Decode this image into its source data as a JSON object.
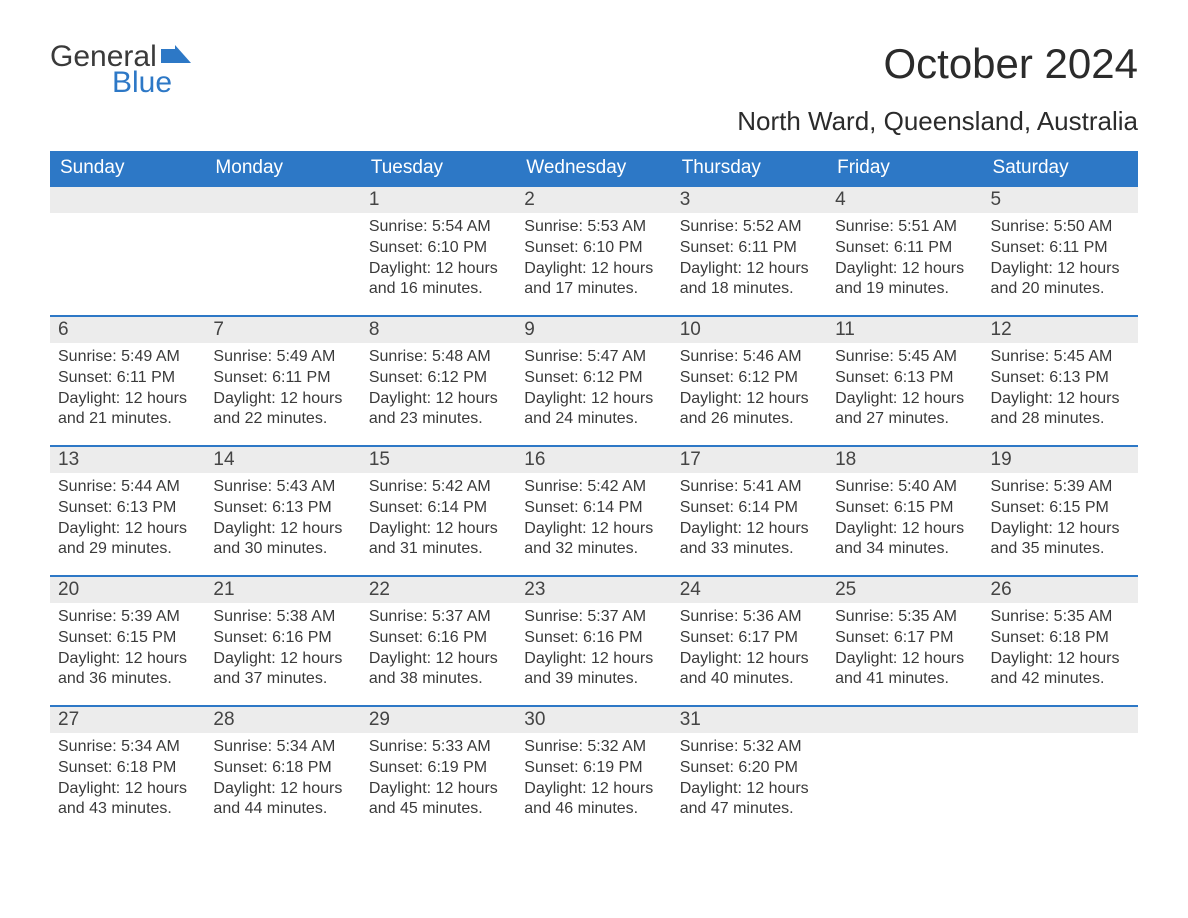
{
  "logo": {
    "text1": "General",
    "text2": "Blue",
    "accent_color": "#2d78c6"
  },
  "header": {
    "month_title": "October 2024",
    "location": "North Ward, Queensland, Australia"
  },
  "calendar": {
    "type": "table",
    "header_bg": "#2d78c6",
    "header_fg": "#ffffff",
    "daynum_bg": "#ececec",
    "row_border_color": "#2d78c6",
    "text_color": "#3a3a3a",
    "font_family": "Arial",
    "day_headers": [
      "Sunday",
      "Monday",
      "Tuesday",
      "Wednesday",
      "Thursday",
      "Friday",
      "Saturday"
    ],
    "weeks": [
      [
        null,
        null,
        {
          "n": "1",
          "sunrise": "Sunrise: 5:54 AM",
          "sunset": "Sunset: 6:10 PM",
          "dl1": "Daylight: 12 hours",
          "dl2": "and 16 minutes."
        },
        {
          "n": "2",
          "sunrise": "Sunrise: 5:53 AM",
          "sunset": "Sunset: 6:10 PM",
          "dl1": "Daylight: 12 hours",
          "dl2": "and 17 minutes."
        },
        {
          "n": "3",
          "sunrise": "Sunrise: 5:52 AM",
          "sunset": "Sunset: 6:11 PM",
          "dl1": "Daylight: 12 hours",
          "dl2": "and 18 minutes."
        },
        {
          "n": "4",
          "sunrise": "Sunrise: 5:51 AM",
          "sunset": "Sunset: 6:11 PM",
          "dl1": "Daylight: 12 hours",
          "dl2": "and 19 minutes."
        },
        {
          "n": "5",
          "sunrise": "Sunrise: 5:50 AM",
          "sunset": "Sunset: 6:11 PM",
          "dl1": "Daylight: 12 hours",
          "dl2": "and 20 minutes."
        }
      ],
      [
        {
          "n": "6",
          "sunrise": "Sunrise: 5:49 AM",
          "sunset": "Sunset: 6:11 PM",
          "dl1": "Daylight: 12 hours",
          "dl2": "and 21 minutes."
        },
        {
          "n": "7",
          "sunrise": "Sunrise: 5:49 AM",
          "sunset": "Sunset: 6:11 PM",
          "dl1": "Daylight: 12 hours",
          "dl2": "and 22 minutes."
        },
        {
          "n": "8",
          "sunrise": "Sunrise: 5:48 AM",
          "sunset": "Sunset: 6:12 PM",
          "dl1": "Daylight: 12 hours",
          "dl2": "and 23 minutes."
        },
        {
          "n": "9",
          "sunrise": "Sunrise: 5:47 AM",
          "sunset": "Sunset: 6:12 PM",
          "dl1": "Daylight: 12 hours",
          "dl2": "and 24 minutes."
        },
        {
          "n": "10",
          "sunrise": "Sunrise: 5:46 AM",
          "sunset": "Sunset: 6:12 PM",
          "dl1": "Daylight: 12 hours",
          "dl2": "and 26 minutes."
        },
        {
          "n": "11",
          "sunrise": "Sunrise: 5:45 AM",
          "sunset": "Sunset: 6:13 PM",
          "dl1": "Daylight: 12 hours",
          "dl2": "and 27 minutes."
        },
        {
          "n": "12",
          "sunrise": "Sunrise: 5:45 AM",
          "sunset": "Sunset: 6:13 PM",
          "dl1": "Daylight: 12 hours",
          "dl2": "and 28 minutes."
        }
      ],
      [
        {
          "n": "13",
          "sunrise": "Sunrise: 5:44 AM",
          "sunset": "Sunset: 6:13 PM",
          "dl1": "Daylight: 12 hours",
          "dl2": "and 29 minutes."
        },
        {
          "n": "14",
          "sunrise": "Sunrise: 5:43 AM",
          "sunset": "Sunset: 6:13 PM",
          "dl1": "Daylight: 12 hours",
          "dl2": "and 30 minutes."
        },
        {
          "n": "15",
          "sunrise": "Sunrise: 5:42 AM",
          "sunset": "Sunset: 6:14 PM",
          "dl1": "Daylight: 12 hours",
          "dl2": "and 31 minutes."
        },
        {
          "n": "16",
          "sunrise": "Sunrise: 5:42 AM",
          "sunset": "Sunset: 6:14 PM",
          "dl1": "Daylight: 12 hours",
          "dl2": "and 32 minutes."
        },
        {
          "n": "17",
          "sunrise": "Sunrise: 5:41 AM",
          "sunset": "Sunset: 6:14 PM",
          "dl1": "Daylight: 12 hours",
          "dl2": "and 33 minutes."
        },
        {
          "n": "18",
          "sunrise": "Sunrise: 5:40 AM",
          "sunset": "Sunset: 6:15 PM",
          "dl1": "Daylight: 12 hours",
          "dl2": "and 34 minutes."
        },
        {
          "n": "19",
          "sunrise": "Sunrise: 5:39 AM",
          "sunset": "Sunset: 6:15 PM",
          "dl1": "Daylight: 12 hours",
          "dl2": "and 35 minutes."
        }
      ],
      [
        {
          "n": "20",
          "sunrise": "Sunrise: 5:39 AM",
          "sunset": "Sunset: 6:15 PM",
          "dl1": "Daylight: 12 hours",
          "dl2": "and 36 minutes."
        },
        {
          "n": "21",
          "sunrise": "Sunrise: 5:38 AM",
          "sunset": "Sunset: 6:16 PM",
          "dl1": "Daylight: 12 hours",
          "dl2": "and 37 minutes."
        },
        {
          "n": "22",
          "sunrise": "Sunrise: 5:37 AM",
          "sunset": "Sunset: 6:16 PM",
          "dl1": "Daylight: 12 hours",
          "dl2": "and 38 minutes."
        },
        {
          "n": "23",
          "sunrise": "Sunrise: 5:37 AM",
          "sunset": "Sunset: 6:16 PM",
          "dl1": "Daylight: 12 hours",
          "dl2": "and 39 minutes."
        },
        {
          "n": "24",
          "sunrise": "Sunrise: 5:36 AM",
          "sunset": "Sunset: 6:17 PM",
          "dl1": "Daylight: 12 hours",
          "dl2": "and 40 minutes."
        },
        {
          "n": "25",
          "sunrise": "Sunrise: 5:35 AM",
          "sunset": "Sunset: 6:17 PM",
          "dl1": "Daylight: 12 hours",
          "dl2": "and 41 minutes."
        },
        {
          "n": "26",
          "sunrise": "Sunrise: 5:35 AM",
          "sunset": "Sunset: 6:18 PM",
          "dl1": "Daylight: 12 hours",
          "dl2": "and 42 minutes."
        }
      ],
      [
        {
          "n": "27",
          "sunrise": "Sunrise: 5:34 AM",
          "sunset": "Sunset: 6:18 PM",
          "dl1": "Daylight: 12 hours",
          "dl2": "and 43 minutes."
        },
        {
          "n": "28",
          "sunrise": "Sunrise: 5:34 AM",
          "sunset": "Sunset: 6:18 PM",
          "dl1": "Daylight: 12 hours",
          "dl2": "and 44 minutes."
        },
        {
          "n": "29",
          "sunrise": "Sunrise: 5:33 AM",
          "sunset": "Sunset: 6:19 PM",
          "dl1": "Daylight: 12 hours",
          "dl2": "and 45 minutes."
        },
        {
          "n": "30",
          "sunrise": "Sunrise: 5:32 AM",
          "sunset": "Sunset: 6:19 PM",
          "dl1": "Daylight: 12 hours",
          "dl2": "and 46 minutes."
        },
        {
          "n": "31",
          "sunrise": "Sunrise: 5:32 AM",
          "sunset": "Sunset: 6:20 PM",
          "dl1": "Daylight: 12 hours",
          "dl2": "and 47 minutes."
        },
        null,
        null
      ]
    ]
  }
}
